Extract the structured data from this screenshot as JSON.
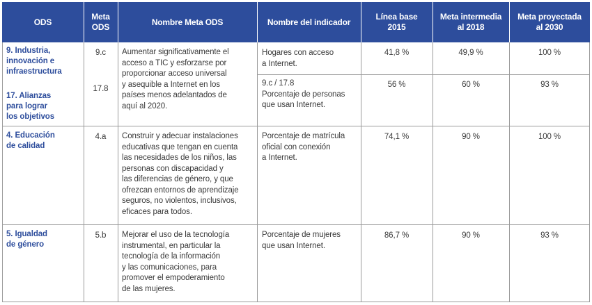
{
  "headers": {
    "ods": "ODS",
    "meta_ods": "Meta\nODS",
    "nombre_meta_ods": "Nombre Meta ODS",
    "nombre_indicador": "Nombre del indicador",
    "linea_base": "Línea base\n2015",
    "meta_intermedia": "Meta intermedia\nal 2018",
    "meta_proyectada": "Meta proyectada\nal 2030"
  },
  "rows": [
    {
      "ods": "9. Industria,\ninnovación e\ninfraestructura",
      "ods_2": "17. Alianzas\npara lograr\nlos objetivos",
      "meta": "9.c",
      "meta_2": "17.8",
      "nombre_meta": "Aumentar significativamente el\nacceso a TIC y esforzarse por\nproporcionar acceso universal\ny asequible a Internet en los\npaíses menos adelantados de\naquí al 2020.",
      "indicador": "Hogares con acceso\na Internet.",
      "linea_base": "41,8 %",
      "meta_intermedia": "49,9 %",
      "meta_proyectada": "100 %",
      "indicador_2": "9.c / 17.8\nPorcentaje de personas\nque usan Internet.",
      "linea_base_2": "56 %",
      "meta_intermedia_2": "60 %",
      "meta_proyectada_2": "93 %"
    },
    {
      "ods": "4. Educación\nde calidad",
      "meta": "4.a",
      "nombre_meta": "Construir y adecuar instalaciones\neducativas que tengan en cuenta\nlas necesidades de los niños, las\npersonas con discapacidad y\nlas diferencias de género, y que\nofrezcan entornos de aprendizaje\nseguros, no violentos, inclusivos,\neficaces para todos.",
      "indicador": "Porcentaje de matrícula\noficial con conexión\na Internet.",
      "linea_base": "74,1 %",
      "meta_intermedia": "90 %",
      "meta_proyectada": "100 %"
    },
    {
      "ods": "5. Igualdad\nde género",
      "meta": "5.b",
      "nombre_meta": "Mejorar el uso de la tecnología\ninstrumental, en particular la\ntecnología de la información\ny las comunicaciones, para\npromover el empoderamiento\nde las mujeres.",
      "indicador": "Porcentaje de mujeres\nque usan Internet.",
      "linea_base": "86,7 %",
      "meta_intermedia": "90 %",
      "meta_proyectada": "93 %"
    }
  ]
}
